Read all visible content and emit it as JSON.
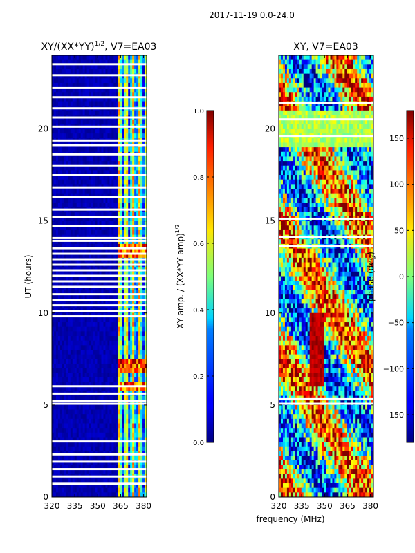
{
  "suptitle": "2017-11-19 0.0-24.0",
  "chart_data": [
    {
      "type": "heatmap",
      "title": "XY/(XX*YY)",
      "title_exponent": "1/2",
      "title_suffix": ", V7=EA03",
      "xlabel": "",
      "ylabel": "UT (hours)",
      "xlim": [
        320,
        382
      ],
      "ylim": [
        0,
        24
      ],
      "xticks": [
        320,
        335,
        350,
        365,
        380
      ],
      "yticks": [
        0,
        5,
        10,
        15,
        20
      ],
      "colorbar": {
        "label": "XY amp. / (XX*YY amp)",
        "label_exponent": "1/2",
        "range": [
          0.0,
          1.0
        ],
        "ticks": [
          "0.0",
          "0.2",
          "0.4",
          "0.6",
          "0.8",
          "1.0"
        ]
      },
      "gaps_hours": [
        23.5,
        22.9,
        22.2,
        21.7,
        21.1,
        20.6,
        20.1,
        19.35,
        19.1,
        18.6,
        18.0,
        17.5,
        16.8,
        16.3,
        15.6,
        15.2,
        14.7,
        14.05,
        13.9,
        13.5,
        13.2,
        12.9,
        12.6,
        12.3,
        12.0,
        11.7,
        11.4,
        11.0,
        10.7,
        10.4,
        10.1,
        9.8,
        6.0,
        5.6,
        5.2,
        5.05,
        3.0,
        2.3,
        1.9,
        1.5,
        1.1,
        0.7
      ],
      "bright_bands_hours": [
        [
          13.0,
          13.8
        ],
        [
          6.8,
          7.4
        ],
        [
          5.8,
          6.2
        ]
      ]
    },
    {
      "type": "heatmap",
      "title": "XY, V7=EA03",
      "xlabel": "frequency (MHz)",
      "ylabel": "",
      "xlim": [
        320,
        382
      ],
      "ylim": [
        0,
        24
      ],
      "xticks": [
        320,
        335,
        350,
        365,
        380
      ],
      "yticks": [
        0,
        5,
        10,
        15,
        20
      ],
      "colorbar": {
        "label": "phase (deg)",
        "range": [
          -180,
          180
        ],
        "ticks": [
          "150",
          "100",
          "50",
          "0",
          "−50",
          "−100",
          "−150"
        ]
      },
      "gaps_hours": [
        21.4,
        20.5,
        19.6,
        15.1,
        14.1,
        13.6,
        5.3,
        5.05
      ]
    }
  ]
}
